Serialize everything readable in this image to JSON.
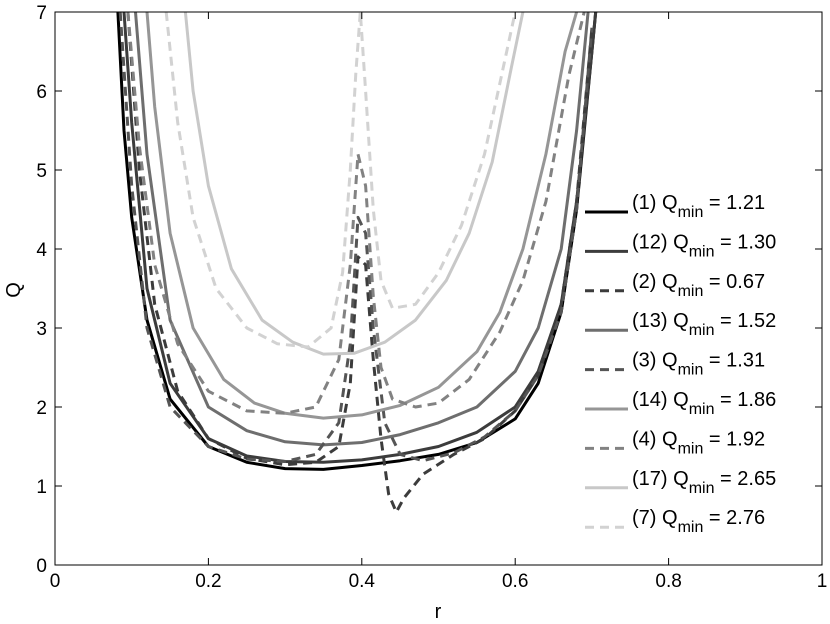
{
  "chart_data": {
    "type": "line",
    "xlabel": "r",
    "ylabel": "Q",
    "xlim": [
      0,
      1
    ],
    "ylim": [
      0,
      7
    ],
    "xticks": [
      0,
      0.2,
      0.4,
      0.6,
      0.8,
      1
    ],
    "xtick_labels": [
      "0",
      "0.2",
      "0.4",
      "0.6",
      "0.8",
      "1"
    ],
    "yticks": [
      0,
      1,
      2,
      3,
      4,
      5,
      6,
      7
    ],
    "ytick_labels": [
      "0",
      "1",
      "2",
      "3",
      "4",
      "5",
      "6",
      "7"
    ],
    "grid": false,
    "legend_position": "right",
    "series": [
      {
        "id": "1",
        "legend_prefix": "(1) Q",
        "legend_sub": "min",
        "legend_suffix": " = 1.21",
        "color": "#000000",
        "dash": "solid",
        "x": [
          0.082,
          0.09,
          0.1,
          0.12,
          0.15,
          0.2,
          0.25,
          0.3,
          0.35,
          0.4,
          0.45,
          0.5,
          0.55,
          0.6,
          0.63,
          0.66,
          0.68,
          0.7,
          0.705
        ],
        "y": [
          7.0,
          5.5,
          4.4,
          3.1,
          2.1,
          1.5,
          1.3,
          1.22,
          1.21,
          1.26,
          1.32,
          1.4,
          1.55,
          1.85,
          2.3,
          3.2,
          4.5,
          6.5,
          7.0
        ]
      },
      {
        "id": "12",
        "legend_prefix": "(12) Q",
        "legend_sub": "min",
        "legend_suffix": " = 1.30",
        "color": "#3c3c3c",
        "dash": "solid",
        "x": [
          0.09,
          0.1,
          0.12,
          0.15,
          0.2,
          0.25,
          0.3,
          0.35,
          0.4,
          0.45,
          0.5,
          0.55,
          0.6,
          0.63,
          0.66,
          0.68,
          0.7,
          0.705
        ],
        "y": [
          7.0,
          5.6,
          3.5,
          2.3,
          1.6,
          1.38,
          1.31,
          1.3,
          1.33,
          1.4,
          1.5,
          1.68,
          2.0,
          2.45,
          3.3,
          4.6,
          6.5,
          7.0
        ]
      },
      {
        "id": "2",
        "legend_prefix": "(2) Q",
        "legend_sub": "min",
        "legend_suffix": " = 0.67",
        "color": "#3c3c3c",
        "dash": "dashed",
        "x": [
          0.095,
          0.11,
          0.13,
          0.16,
          0.2,
          0.25,
          0.3,
          0.34,
          0.37,
          0.385,
          0.395,
          0.405,
          0.415,
          0.425,
          0.435,
          0.445,
          0.455,
          0.48,
          0.52,
          0.56,
          0.6,
          0.63,
          0.66,
          0.68,
          0.7
        ],
        "y": [
          7.0,
          5.0,
          3.3,
          2.2,
          1.6,
          1.35,
          1.27,
          1.3,
          1.5,
          2.3,
          3.9,
          3.8,
          2.6,
          1.6,
          0.9,
          0.67,
          0.85,
          1.15,
          1.4,
          1.6,
          1.95,
          2.4,
          3.3,
          4.6,
          6.8
        ]
      },
      {
        "id": "13",
        "legend_prefix": "(13) Q",
        "legend_sub": "min",
        "legend_suffix": " = 1.52",
        "color": "#6e6e6e",
        "dash": "solid",
        "x": [
          0.105,
          0.12,
          0.15,
          0.2,
          0.25,
          0.3,
          0.35,
          0.4,
          0.45,
          0.5,
          0.55,
          0.6,
          0.63,
          0.66,
          0.68,
          0.695
        ],
        "y": [
          7.0,
          5.2,
          3.1,
          2.0,
          1.7,
          1.56,
          1.52,
          1.55,
          1.65,
          1.8,
          2.0,
          2.45,
          3.0,
          4.0,
          5.5,
          7.0
        ]
      },
      {
        "id": "3",
        "legend_prefix": "(3) Q",
        "legend_sub": "min",
        "legend_suffix": " = 1.31",
        "color": "#555555",
        "dash": "dashed",
        "x": [
          0.085,
          0.1,
          0.12,
          0.15,
          0.2,
          0.25,
          0.3,
          0.34,
          0.37,
          0.385,
          0.395,
          0.405,
          0.415,
          0.43,
          0.45,
          0.48,
          0.52,
          0.56,
          0.6,
          0.63,
          0.66,
          0.68,
          0.7
        ],
        "y": [
          7.0,
          4.8,
          3.0,
          2.0,
          1.5,
          1.34,
          1.31,
          1.4,
          1.8,
          2.8,
          4.4,
          4.2,
          3.0,
          1.8,
          1.4,
          1.32,
          1.42,
          1.62,
          1.95,
          2.4,
          3.2,
          4.5,
          6.8
        ]
      },
      {
        "id": "14",
        "legend_prefix": "(14) Q",
        "legend_sub": "min",
        "legend_suffix": " = 1.86",
        "color": "#969696",
        "dash": "solid",
        "x": [
          0.12,
          0.13,
          0.15,
          0.18,
          0.22,
          0.26,
          0.3,
          0.35,
          0.4,
          0.45,
          0.5,
          0.55,
          0.58,
          0.61,
          0.64,
          0.665,
          0.68
        ],
        "y": [
          7.0,
          5.8,
          4.2,
          3.0,
          2.35,
          2.05,
          1.92,
          1.86,
          1.9,
          2.02,
          2.25,
          2.7,
          3.2,
          4.0,
          5.2,
          6.5,
          7.0
        ]
      },
      {
        "id": "4",
        "legend_prefix": "(4) Q",
        "legend_sub": "min",
        "legend_suffix": " = 1.92",
        "color": "#828282",
        "dash": "dashed",
        "x": [
          0.095,
          0.11,
          0.13,
          0.16,
          0.2,
          0.25,
          0.3,
          0.34,
          0.37,
          0.385,
          0.395,
          0.405,
          0.415,
          0.425,
          0.44,
          0.47,
          0.5,
          0.54,
          0.58,
          0.61,
          0.64,
          0.67,
          0.69
        ],
        "y": [
          7.0,
          5.3,
          3.8,
          2.8,
          2.2,
          1.95,
          1.92,
          2.0,
          2.6,
          3.8,
          5.2,
          4.8,
          3.4,
          2.5,
          2.1,
          2.0,
          2.05,
          2.35,
          2.95,
          3.6,
          4.6,
          6.2,
          7.0
        ]
      },
      {
        "id": "17",
        "legend_prefix": "(17) Q",
        "legend_sub": "min",
        "legend_suffix": " = 2.65",
        "color": "#c8c8c8",
        "dash": "solid",
        "x": [
          0.17,
          0.18,
          0.2,
          0.23,
          0.27,
          0.31,
          0.35,
          0.39,
          0.43,
          0.47,
          0.51,
          0.54,
          0.57,
          0.595,
          0.61
        ],
        "y": [
          7.0,
          6.0,
          4.8,
          3.75,
          3.1,
          2.82,
          2.67,
          2.68,
          2.82,
          3.1,
          3.6,
          4.2,
          5.1,
          6.3,
          7.0
        ]
      },
      {
        "id": "7",
        "legend_prefix": "(7) Q",
        "legend_sub": "min",
        "legend_suffix": " = 2.76",
        "color": "#d2d2d2",
        "dash": "dashed",
        "x": [
          0.145,
          0.16,
          0.18,
          0.21,
          0.25,
          0.29,
          0.33,
          0.36,
          0.375,
          0.385,
          0.392,
          0.398,
          0.405,
          0.415,
          0.425,
          0.44,
          0.47,
          0.5,
          0.53,
          0.56,
          0.58,
          0.6
        ],
        "y": [
          7.0,
          5.6,
          4.4,
          3.5,
          3.0,
          2.8,
          2.76,
          3.0,
          3.7,
          5.0,
          6.2,
          7.0,
          6.0,
          4.5,
          3.6,
          3.25,
          3.3,
          3.7,
          4.3,
          5.2,
          6.1,
          7.0
        ]
      }
    ]
  }
}
